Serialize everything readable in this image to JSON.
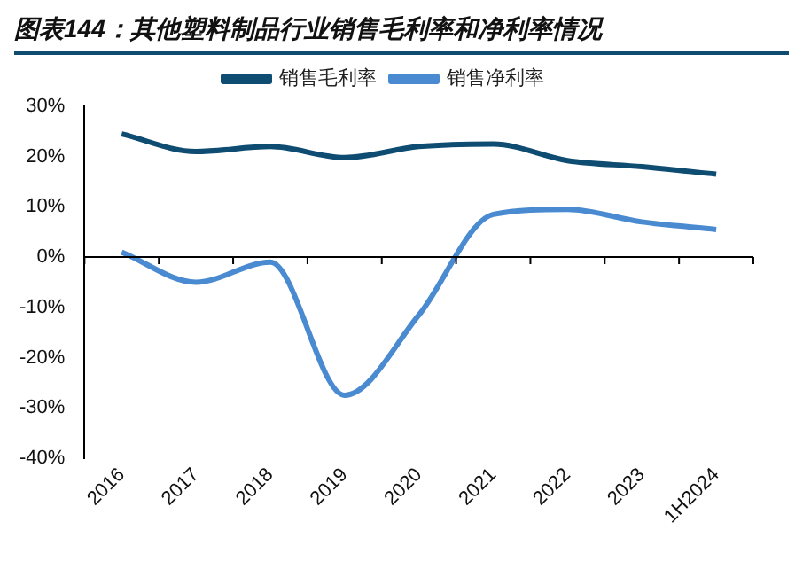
{
  "chart_data": {
    "type": "line",
    "title": "图表144：其他塑料制品行业销售毛利率和净利率情况",
    "categories": [
      "2016",
      "2017",
      "2018",
      "2019",
      "2020",
      "2021",
      "2022",
      "2023",
      "1H2024"
    ],
    "series": [
      {
        "name": "销售毛利率",
        "color": "#0f4c72",
        "values": [
          24.5,
          21,
          22,
          19.8,
          22,
          22.5,
          19.2,
          18,
          16.5
        ]
      },
      {
        "name": "销售净利率",
        "color": "#4a8ad0",
        "values": [
          1,
          -5,
          -1,
          -27.5,
          -11.5,
          8.5,
          9.5,
          7,
          5.5
        ]
      }
    ],
    "ylim": [
      -40,
      30
    ],
    "yticks": [
      {
        "value": -40,
        "label": "-40%"
      },
      {
        "value": -30,
        "label": "-30%"
      },
      {
        "value": -20,
        "label": "-20%"
      },
      {
        "value": -10,
        "label": "-10%"
      },
      {
        "value": 0,
        "label": "0%"
      },
      {
        "value": 10,
        "label": "10%"
      },
      {
        "value": 20,
        "label": "20%"
      },
      {
        "value": 30,
        "label": "30%"
      }
    ],
    "ref_lines": [
      {
        "axis": "y",
        "value": 0,
        "color": "#000000"
      }
    ],
    "grid": false,
    "legend": "top",
    "marker": "none",
    "line_style": "solid"
  }
}
